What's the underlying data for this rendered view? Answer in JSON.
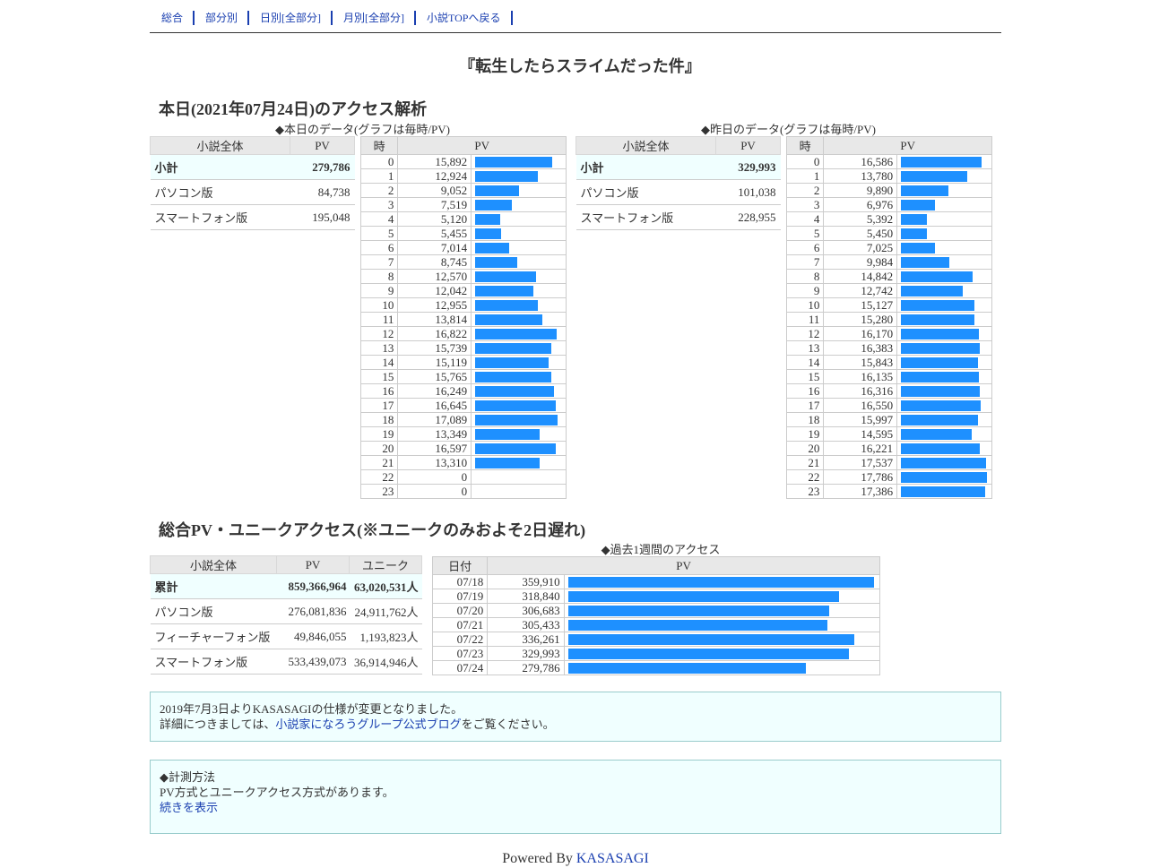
{
  "nav": [
    {
      "label": "総合",
      "name": "nav-overview"
    },
    {
      "label": "部分別",
      "name": "nav-by-part"
    },
    {
      "label": "日別[全部分]",
      "name": "nav-daily"
    },
    {
      "label": "月別[全部分]",
      "name": "nav-monthly"
    },
    {
      "label": "小説TOPへ戻る",
      "name": "nav-novel-top"
    }
  ],
  "novel_title": "『転生したらスライムだった件』",
  "today_section": {
    "heading": "本日(2021年07月24日)のアクセス解析",
    "today_caption": "◆本日のデータ(グラフは毎時/PV)",
    "yesterday_caption": "◆昨日のデータ(グラフは毎時/PV)"
  },
  "summary_headers": {
    "name": "小説全体",
    "pv": "PV"
  },
  "hourly_headers": {
    "hour": "時",
    "pv": "PV"
  },
  "today_summary": [
    {
      "label": "小計",
      "pv": "279,786",
      "total": true
    },
    {
      "label": "パソコン版",
      "pv": "84,738"
    },
    {
      "label": "スマートフォン版",
      "pv": "195,048"
    }
  ],
  "yesterday_summary": [
    {
      "label": "小計",
      "pv": "329,993",
      "total": true
    },
    {
      "label": "パソコン版",
      "pv": "101,038"
    },
    {
      "label": "スマートフォン版",
      "pv": "228,955"
    }
  ],
  "today_hourly": [
    {
      "hour": "0",
      "pv": "15,892",
      "value": 15892
    },
    {
      "hour": "1",
      "pv": "12,924",
      "value": 12924
    },
    {
      "hour": "2",
      "pv": "9,052",
      "value": 9052
    },
    {
      "hour": "3",
      "pv": "7,519",
      "value": 7519
    },
    {
      "hour": "4",
      "pv": "5,120",
      "value": 5120
    },
    {
      "hour": "5",
      "pv": "5,455",
      "value": 5455
    },
    {
      "hour": "6",
      "pv": "7,014",
      "value": 7014
    },
    {
      "hour": "7",
      "pv": "8,745",
      "value": 8745
    },
    {
      "hour": "8",
      "pv": "12,570",
      "value": 12570
    },
    {
      "hour": "9",
      "pv": "12,042",
      "value": 12042
    },
    {
      "hour": "10",
      "pv": "12,955",
      "value": 12955
    },
    {
      "hour": "11",
      "pv": "13,814",
      "value": 13814
    },
    {
      "hour": "12",
      "pv": "16,822",
      "value": 16822
    },
    {
      "hour": "13",
      "pv": "15,739",
      "value": 15739
    },
    {
      "hour": "14",
      "pv": "15,119",
      "value": 15119
    },
    {
      "hour": "15",
      "pv": "15,765",
      "value": 15765
    },
    {
      "hour": "16",
      "pv": "16,249",
      "value": 16249
    },
    {
      "hour": "17",
      "pv": "16,645",
      "value": 16645
    },
    {
      "hour": "18",
      "pv": "17,089",
      "value": 17089
    },
    {
      "hour": "19",
      "pv": "13,349",
      "value": 13349
    },
    {
      "hour": "20",
      "pv": "16,597",
      "value": 16597
    },
    {
      "hour": "21",
      "pv": "13,310",
      "value": 13310
    },
    {
      "hour": "22",
      "pv": "0",
      "value": 0
    },
    {
      "hour": "23",
      "pv": "0",
      "value": 0
    }
  ],
  "yesterday_hourly": [
    {
      "hour": "0",
      "pv": "16,586",
      "value": 16586
    },
    {
      "hour": "1",
      "pv": "13,780",
      "value": 13780
    },
    {
      "hour": "2",
      "pv": "9,890",
      "value": 9890
    },
    {
      "hour": "3",
      "pv": "6,976",
      "value": 6976
    },
    {
      "hour": "4",
      "pv": "5,392",
      "value": 5392
    },
    {
      "hour": "5",
      "pv": "5,450",
      "value": 5450
    },
    {
      "hour": "6",
      "pv": "7,025",
      "value": 7025
    },
    {
      "hour": "7",
      "pv": "9,984",
      "value": 9984
    },
    {
      "hour": "8",
      "pv": "14,842",
      "value": 14842
    },
    {
      "hour": "9",
      "pv": "12,742",
      "value": 12742
    },
    {
      "hour": "10",
      "pv": "15,127",
      "value": 15127
    },
    {
      "hour": "11",
      "pv": "15,280",
      "value": 15280
    },
    {
      "hour": "12",
      "pv": "16,170",
      "value": 16170
    },
    {
      "hour": "13",
      "pv": "16,383",
      "value": 16383
    },
    {
      "hour": "14",
      "pv": "15,843",
      "value": 15843
    },
    {
      "hour": "15",
      "pv": "16,135",
      "value": 16135
    },
    {
      "hour": "16",
      "pv": "16,316",
      "value": 16316
    },
    {
      "hour": "17",
      "pv": "16,550",
      "value": 16550
    },
    {
      "hour": "18",
      "pv": "15,997",
      "value": 15997
    },
    {
      "hour": "19",
      "pv": "14,595",
      "value": 14595
    },
    {
      "hour": "20",
      "pv": "16,221",
      "value": 16221
    },
    {
      "hour": "21",
      "pv": "17,537",
      "value": 17537
    },
    {
      "hour": "22",
      "pv": "17,786",
      "value": 17786
    },
    {
      "hour": "23",
      "pv": "17,386",
      "value": 17386
    }
  ],
  "total_section": {
    "heading": "総合PV・ユニークアクセス(※ユニークのみおよそ2日遅れ)",
    "week_caption": "◆過去1週間のアクセス"
  },
  "total_headers": {
    "name": "小説全体",
    "pv": "PV",
    "unique": "ユニーク"
  },
  "total_summary": [
    {
      "label": "累計",
      "pv": "859,366,964",
      "unique": "63,020,531人",
      "total": true
    },
    {
      "label": "パソコン版",
      "pv": "276,081,836",
      "unique": "24,911,762人"
    },
    {
      "label": "フィーチャーフォン版",
      "pv": "49,846,055",
      "unique": "1,193,823人"
    },
    {
      "label": "スマートフォン版",
      "pv": "533,439,073",
      "unique": "36,914,946人"
    }
  ],
  "week_headers": {
    "date": "日付",
    "pv": "PV"
  },
  "week": [
    {
      "date": "07/18",
      "pv": "359,910",
      "value": 359910
    },
    {
      "date": "07/19",
      "pv": "318,840",
      "value": 318840
    },
    {
      "date": "07/20",
      "pv": "306,683",
      "value": 306683
    },
    {
      "date": "07/21",
      "pv": "305,433",
      "value": 305433
    },
    {
      "date": "07/22",
      "pv": "336,261",
      "value": 336261
    },
    {
      "date": "07/23",
      "pv": "329,993",
      "value": 329993
    },
    {
      "date": "07/24",
      "pv": "279,786",
      "value": 279786
    }
  ],
  "notice": {
    "line1": "2019年7月3日よりKASASAGIの仕様が変更となりました。",
    "line2_pre": "詳細につきましては、",
    "line2_link": "小説家になろうグループ公式ブログ",
    "line2_post": "をご覧ください。"
  },
  "method": {
    "title": "◆計測方法",
    "text": "PV方式とユニークアクセス方式があります。",
    "more_link": "続きを表示"
  },
  "footer": {
    "prefix": "Powered By ",
    "link": "KASASAGI"
  },
  "colors": {
    "bar": "#1e90ff",
    "link": "#1a3fb0",
    "total_row_bg": "#f0ffff",
    "header_bg": "#e8e8e8"
  }
}
